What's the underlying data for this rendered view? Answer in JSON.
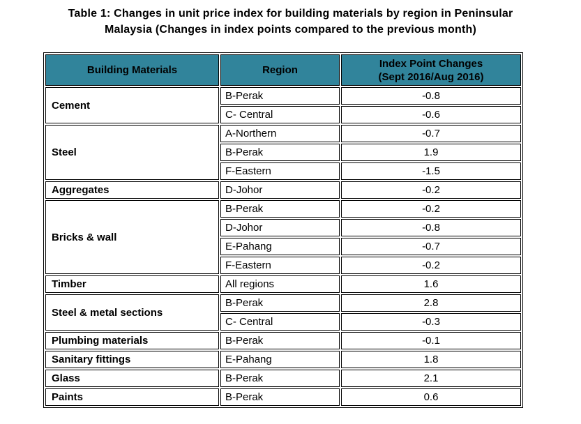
{
  "title": {
    "line1": "Table 1: Changes in unit price index for building materials by region in Peninsular",
    "line2": "Malaysia (Changes in index points compared to the previous month)"
  },
  "table": {
    "header_bg": "#31849B",
    "header": {
      "building_materials": "Building Materials",
      "region": "Region",
      "index_changes_line1": "Index Point Changes",
      "index_changes_line2": "(Sept 2016/Aug 2016)"
    },
    "groups": [
      {
        "material": "Cement",
        "rows": [
          {
            "region": "B-Perak",
            "change": "-0.8"
          },
          {
            "region": "C- Central",
            "change": "-0.6"
          }
        ]
      },
      {
        "material": "Steel",
        "rows": [
          {
            "region": "A-Northern",
            "change": "-0.7"
          },
          {
            "region": "B-Perak",
            "change": "1.9"
          },
          {
            "region": "F-Eastern",
            "change": "-1.5"
          }
        ]
      },
      {
        "material": "Aggregates",
        "rows": [
          {
            "region": "D-Johor",
            "change": "-0.2"
          }
        ]
      },
      {
        "material": "Bricks & wall",
        "rows": [
          {
            "region": "B-Perak",
            "change": "-0.2"
          },
          {
            "region": "D-Johor",
            "change": "-0.8"
          },
          {
            "region": "E-Pahang",
            "change": "-0.7"
          },
          {
            "region": "F-Eastern",
            "change": "-0.2"
          }
        ]
      },
      {
        "material": "Timber",
        "rows": [
          {
            "region": "All regions",
            "change": "1.6"
          }
        ]
      },
      {
        "material": "Steel & metal sections",
        "rows": [
          {
            "region": "B-Perak",
            "change": "2.8"
          },
          {
            "region": "C- Central",
            "change": "-0.3"
          }
        ]
      },
      {
        "material": "Plumbing materials",
        "rows": [
          {
            "region": "B-Perak",
            "change": "-0.1"
          }
        ]
      },
      {
        "material": "Sanitary fittings",
        "rows": [
          {
            "region": "E-Pahang",
            "change": "1.8"
          }
        ]
      },
      {
        "material": "Glass",
        "rows": [
          {
            "region": "B-Perak",
            "change": "2.1"
          }
        ]
      },
      {
        "material": "Paints",
        "rows": [
          {
            "region": "B-Perak",
            "change": "0.6"
          }
        ]
      }
    ]
  },
  "chart_data": {
    "type": "table",
    "title": "Table 1: Changes in unit price index for building materials by region in Peninsular Malaysia (Changes in index points compared to the previous month)",
    "columns": [
      "Building Materials",
      "Region",
      "Index Point Changes (Sept 2016/Aug 2016)"
    ],
    "rows": [
      [
        "Cement",
        "B-Perak",
        -0.8
      ],
      [
        "Cement",
        "C- Central",
        -0.6
      ],
      [
        "Steel",
        "A-Northern",
        -0.7
      ],
      [
        "Steel",
        "B-Perak",
        1.9
      ],
      [
        "Steel",
        "F-Eastern",
        -1.5
      ],
      [
        "Aggregates",
        "D-Johor",
        -0.2
      ],
      [
        "Bricks & wall",
        "B-Perak",
        -0.2
      ],
      [
        "Bricks & wall",
        "D-Johor",
        -0.8
      ],
      [
        "Bricks & wall",
        "E-Pahang",
        -0.7
      ],
      [
        "Bricks & wall",
        "F-Eastern",
        -0.2
      ],
      [
        "Timber",
        "All regions",
        1.6
      ],
      [
        "Steel & metal sections",
        "B-Perak",
        2.8
      ],
      [
        "Steel & metal sections",
        "C- Central",
        -0.3
      ],
      [
        "Plumbing materials",
        "B-Perak",
        -0.1
      ],
      [
        "Sanitary fittings",
        "E-Pahang",
        1.8
      ],
      [
        "Glass",
        "B-Perak",
        2.1
      ],
      [
        "Paints",
        "B-Perak",
        0.6
      ]
    ]
  }
}
